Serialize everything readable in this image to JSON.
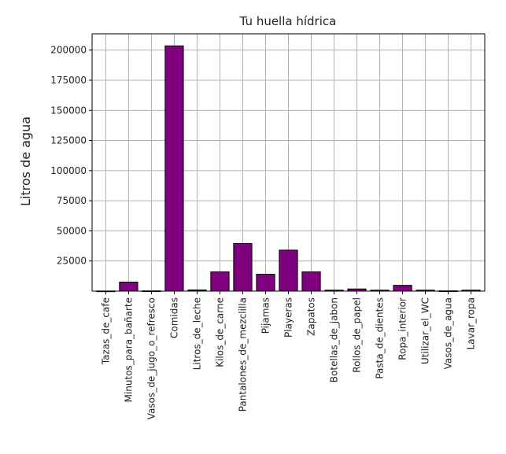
{
  "chart_data": {
    "type": "bar",
    "title": "Tu huella hídrica",
    "xlabel": "",
    "ylabel": "Litros de agua",
    "categories": [
      "Tazas_de_cafe",
      "Minutos_para_bañarte",
      "Vasos_de_jugo_o_refresco",
      "Comidas",
      "Litros_de_leche",
      "Kilos_de_carne",
      "Pantalones_de_mezclilla",
      "Pijamas",
      "Playeras",
      "Zapatos",
      "Botellas_de_jabon",
      "Rollos_de_papel",
      "Pasta_de_dientes",
      "Ropa_interior",
      "Utilizar_el_WC",
      "Vasos_de_agua",
      "Lavar_ropa"
    ],
    "values": [
      100,
      7500,
      200,
      203500,
      1000,
      16000,
      39500,
      14000,
      34000,
      16000,
      800,
      1800,
      800,
      4800,
      800,
      200,
      800
    ],
    "yticks": [
      25000,
      50000,
      75000,
      100000,
      125000,
      150000,
      175000,
      200000
    ],
    "ylim": [
      0,
      213500
    ],
    "grid": true,
    "bar_color": "#800080",
    "edge_color": "#000000"
  }
}
